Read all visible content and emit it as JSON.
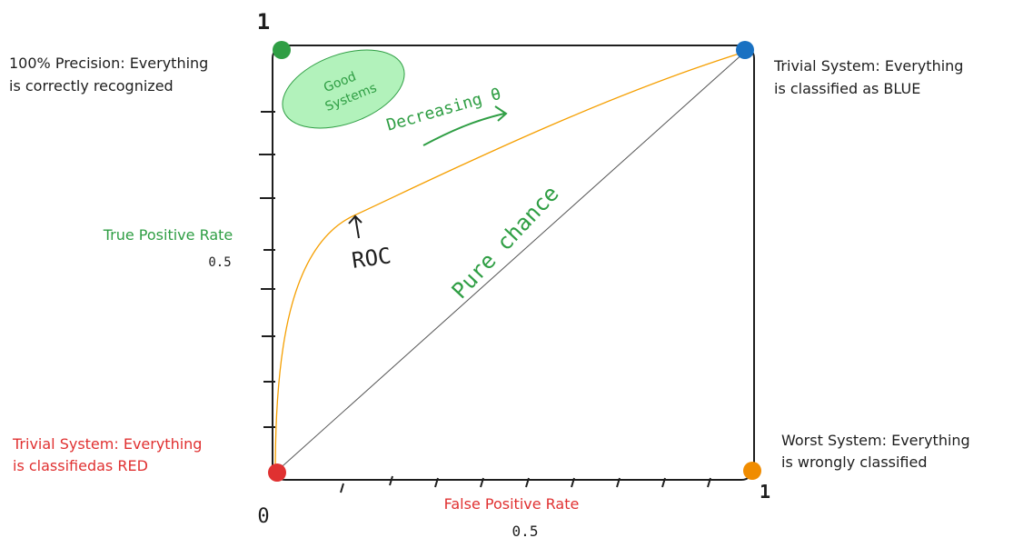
{
  "axes": {
    "x_label": "False Positive Rate",
    "y_label": "True Positive Rate",
    "origin": "0",
    "x_max": "1",
    "y_max": "1",
    "x_mid": "0.5",
    "y_mid": "0.5"
  },
  "corners": {
    "top_left": {
      "lines": [
        "100% Precision: Everything",
        "is correctly recognized"
      ]
    },
    "top_right": {
      "lines": [
        "Trivial System: Everything",
        "is classified as BLUE"
      ]
    },
    "bottom_left": {
      "lines": [
        "Trivial System: Everything",
        "is classifiedas RED"
      ]
    },
    "bottom_right": {
      "lines": [
        "Worst System: Everything",
        "is wrongly classified"
      ]
    }
  },
  "annotations": {
    "good_systems": [
      "Good",
      "Systems"
    ],
    "decreasing": "Decreasing θ",
    "roc": "ROC",
    "pure_chance": "Pure chance"
  }
}
